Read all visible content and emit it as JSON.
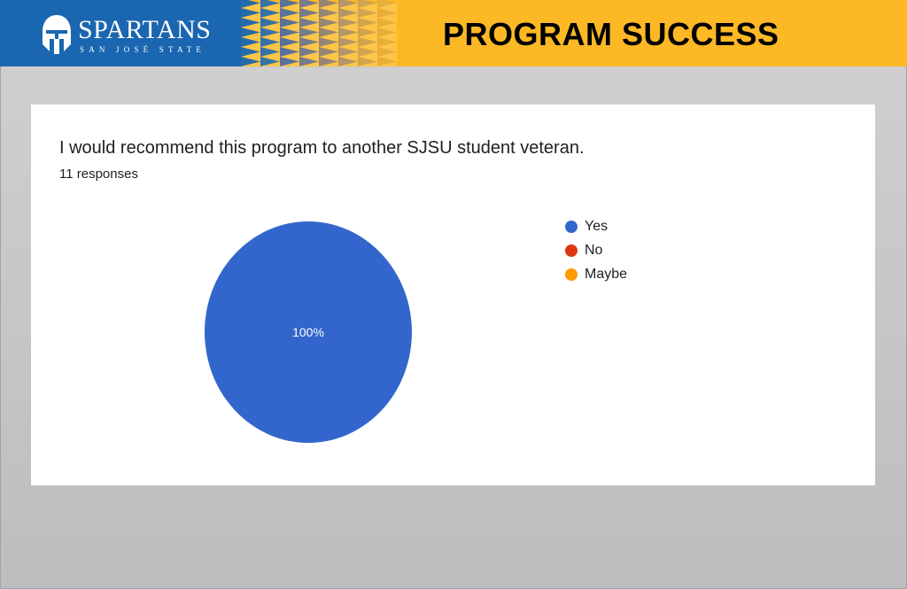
{
  "header": {
    "logo_word": "SPARTANS",
    "logo_sub": "SAN JOSÉ STATE",
    "slide_title": "PROGRAM SUCCESS"
  },
  "colors": {
    "brand_blue": "#1a66b0",
    "brand_gold": "#fdb826",
    "pie_yes": "#3366cc",
    "pie_no": "#dc3912",
    "pie_maybe": "#ff9900"
  },
  "chart_data": {
    "type": "pie",
    "title": "I would recommend this program to another SJSU student veteran.",
    "subtitle": "11 responses",
    "categories": [
      "Yes",
      "No",
      "Maybe"
    ],
    "values": [
      100,
      0,
      0
    ],
    "slice_labels": [
      "100%",
      "",
      ""
    ],
    "colors": [
      "#3366cc",
      "#dc3912",
      "#ff9900"
    ],
    "legend_position": "right"
  }
}
